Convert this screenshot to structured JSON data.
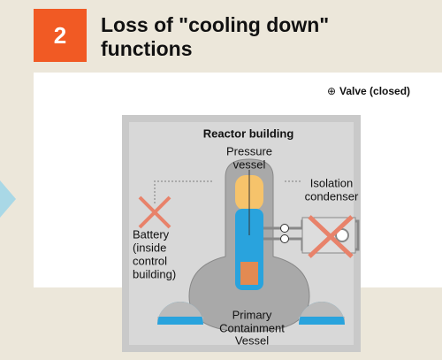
{
  "header": {
    "number": "2",
    "title": [
      "Loss of \"cooling down\"",
      "functions"
    ]
  },
  "legend": {
    "symbol": "⊕",
    "label": "Valve (closed)"
  },
  "building": {
    "title": "Reactor building",
    "pressure_vessel": [
      "Pressure",
      "vessel"
    ],
    "isolation_condenser": [
      "Isolation",
      "condenser"
    ],
    "battery": [
      "Battery",
      "(inside",
      "control",
      "building)"
    ],
    "containment": [
      "Primary",
      "Containment",
      "Vessel"
    ]
  }
}
